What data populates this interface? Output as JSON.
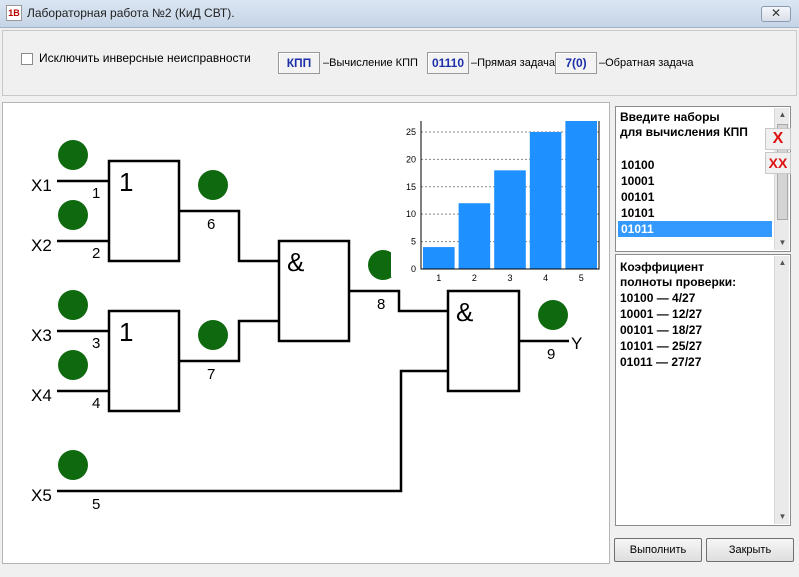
{
  "window": {
    "title": "Лабораторная работа №2 (КиД СВТ).",
    "icon_text": "1B",
    "close_label": "✕"
  },
  "toolbar": {
    "checkbox_label": "Исключить инверсные неисправности",
    "checkbox_checked": false,
    "kpp_button": "КПП",
    "kpp_label": "–Вычисление КПП",
    "direct_button": "01110",
    "direct_label": "–Прямая задача",
    "inverse_button": "7(0)",
    "inverse_label": "–Обратная задача"
  },
  "circuit": {
    "inputs": [
      "X1",
      "X2",
      "X3",
      "X4",
      "X5"
    ],
    "wire_numbers": [
      "1",
      "2",
      "3",
      "4",
      "5",
      "6",
      "7",
      "8",
      "9"
    ],
    "gate_labels": [
      "1",
      "1",
      "&",
      "&"
    ],
    "output_label": "Y",
    "indicator_color": "#0f6a0f"
  },
  "chart_data": {
    "type": "bar",
    "categories": [
      "1",
      "2",
      "3",
      "4",
      "5"
    ],
    "values": [
      4,
      12,
      18,
      25,
      27
    ],
    "ylim": [
      0,
      27
    ],
    "yticks": [
      "0",
      "5",
      "10",
      "15",
      "20",
      "25"
    ],
    "bar_color": "#1e90ff",
    "grid": true
  },
  "inputs_panel": {
    "heading_line1": "Введите наборы",
    "heading_line2": "для вычисления КПП",
    "items": [
      "10100",
      "10001",
      "00101",
      "10101",
      "01011"
    ],
    "selected_index": 4
  },
  "side_buttons": {
    "delete_one": "X",
    "delete_all": "XX"
  },
  "result_panel": {
    "heading_line1": "Коэффициент",
    "heading_line2": "полноты проверки:",
    "lines": [
      "10100 — 4/27",
      "10001 — 12/27",
      "00101 — 18/27",
      "10101 — 25/27",
      "01011 — 27/27"
    ]
  },
  "buttons": {
    "run": "Выполнить",
    "close": "Закрыть"
  }
}
